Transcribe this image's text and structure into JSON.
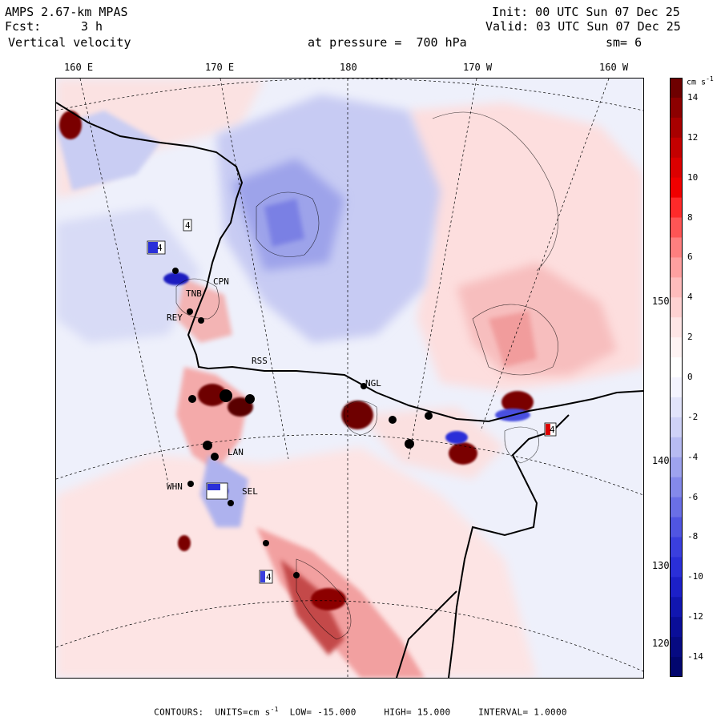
{
  "header": {
    "model": "AMPS 2.67-km MPAS",
    "init": "Init: 00 UTC Sun 07 Dec 25",
    "fcst_label": "Fcst:",
    "fcst_value": "3 h",
    "valid": "Valid: 03 UTC Sun 07 Dec 25",
    "field": "Vertical velocity",
    "pressure": "at pressure =  700 hPa",
    "smooth": "sm= 6"
  },
  "axes": {
    "lon_labels": [
      "160 E",
      "170 E",
      "180",
      "170 W",
      "160 W"
    ],
    "lat_labels": [
      "150 W",
      "140 W",
      "130 W",
      "120 W"
    ]
  },
  "colorbar": {
    "units": "cm s",
    "units_exp": "-1",
    "labels": [
      "14",
      "12",
      "10",
      "8",
      "6",
      "4",
      "2",
      "0",
      "-2",
      "-4",
      "-6",
      "-8",
      "-10",
      "-12",
      "-14"
    ],
    "min": -15,
    "max": 15,
    "interval": 1,
    "colors_top_to_bottom": [
      "#6e0000",
      "#8c0000",
      "#a80000",
      "#c40000",
      "#dc0000",
      "#f00000",
      "#ff2a2a",
      "#ff5555",
      "#ff7f7f",
      "#ffa0a0",
      "#ffbcbc",
      "#ffd2d2",
      "#ffe6e6",
      "#fff4f4",
      "#ffffff",
      "#f4f4ff",
      "#e2e4fb",
      "#cfd2f7",
      "#b7bbf2",
      "#9ea3ee",
      "#8489ea",
      "#6a6fe6",
      "#5055e2",
      "#3a3fde",
      "#2a2fd8",
      "#1c20c8",
      "#1116b0",
      "#0a0e98",
      "#060a82",
      "#02066e"
    ]
  },
  "stations": [
    "CPN",
    "TNB",
    "REY",
    "RSS",
    "NGL",
    "LAN",
    "WHN",
    "SEL"
  ],
  "markers": [
    "4",
    "4",
    "4",
    "4"
  ],
  "footer": {
    "label": "CONTOURS:",
    "units": "UNITS=cm s",
    "units_exp": "-1",
    "low": "LOW= -15.000",
    "high": "HIGH= 15.000",
    "interval": "INTERVAL= 1.0000"
  }
}
